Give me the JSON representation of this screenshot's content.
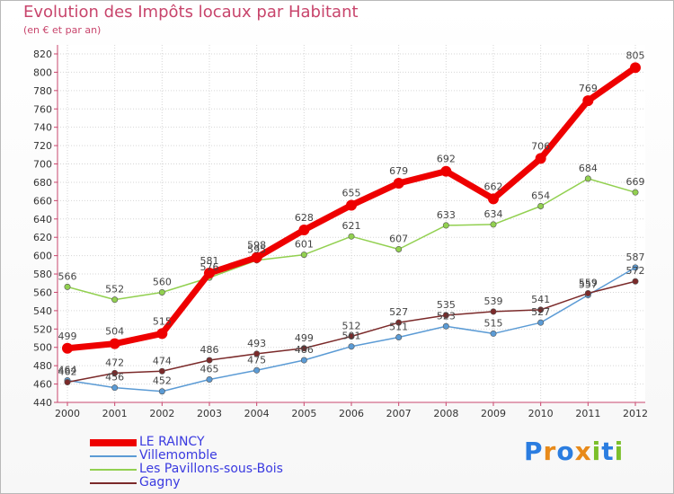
{
  "title": "Evolution des Impôts locaux par Habitant",
  "subtitle": "(en € et par an)",
  "logo": {
    "letters": [
      "P",
      "r",
      "o",
      "x",
      "i",
      "t",
      "i"
    ],
    "colors": [
      "#2b7de0",
      "#e88a1a",
      "#2b7de0",
      "#e88a1a",
      "#7bbf2a",
      "#2b7de0",
      "#7bbf2a"
    ]
  },
  "chart_data": {
    "type": "line",
    "title": "Evolution des Impôts locaux par Habitant",
    "subtitle": "(en € et par an)",
    "xlabel": "",
    "ylabel": "",
    "categories": [
      "2000",
      "2001",
      "2002",
      "2003",
      "2004",
      "2005",
      "2006",
      "2007",
      "2008",
      "2009",
      "2010",
      "2011",
      "2012"
    ],
    "ylim": [
      440,
      820
    ],
    "yticks": [
      "440",
      "460",
      "480",
      "500",
      "520",
      "540",
      "560",
      "580",
      "600",
      "620",
      "640",
      "660",
      "680",
      "700",
      "720",
      "740",
      "760",
      "780",
      "800",
      "820"
    ],
    "grid": true,
    "legend_position": "bottom-left",
    "series": [
      {
        "name": "Villemomble",
        "color": "#5b9bd5",
        "stroke": 1.5,
        "values": [
          464,
          456,
          452,
          465,
          475,
          486,
          501,
          511,
          523,
          515,
          527,
          557,
          587
        ],
        "labels": [
          "464",
          "456",
          "452",
          "465",
          "475",
          "486",
          "501",
          "511",
          "523",
          "515",
          "527",
          "557",
          "587"
        ]
      },
      {
        "name": "Les Pavillons-sous-Bois",
        "color": "#92d050",
        "stroke": 1.5,
        "values": [
          566,
          552,
          560,
          576,
          595,
          601,
          621,
          607,
          633,
          634,
          654,
          684,
          669
        ],
        "labels": [
          "566",
          "552",
          "560",
          "576",
          "595",
          "601",
          "621",
          "607",
          "633",
          "634",
          "654",
          "684",
          "669"
        ]
      },
      {
        "name": "Gagny",
        "color": "#7b2a2a",
        "stroke": 1.5,
        "values": [
          462,
          472,
          474,
          486,
          493,
          499,
          512,
          527,
          535,
          539,
          541,
          559,
          572
        ],
        "labels": [
          "462",
          "472",
          "474",
          "486",
          "493",
          "499",
          "512",
          "527",
          "535",
          "539",
          "541",
          "559",
          "572"
        ]
      },
      {
        "name": "LE RAINCY",
        "color": "#ee0000",
        "stroke": 7,
        "values": [
          499,
          504,
          515,
          581,
          598,
          628,
          655,
          679,
          692,
          662,
          706,
          769,
          805
        ],
        "labels": [
          "499",
          "504",
          "515",
          "581",
          "598",
          "628",
          "655",
          "679",
          "692",
          "662",
          "706",
          "769",
          "805"
        ]
      }
    ],
    "legend_order": [
      "LE RAINCY",
      "Villemomble",
      "Les Pavillons-sous-Bois",
      "Gagny"
    ]
  }
}
